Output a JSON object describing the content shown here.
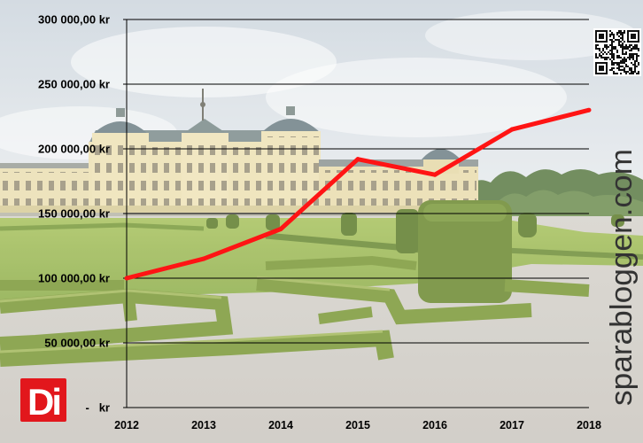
{
  "logo": {
    "text": "Di"
  },
  "watermark": "sparabloggen.com",
  "icons": {
    "qr": "qr-code-icon"
  },
  "colors": {
    "line": "#ff1414",
    "grid": "#000000",
    "logo_background": "#e2171c"
  },
  "chart_data": {
    "type": "line",
    "title": "",
    "xlabel": "",
    "ylabel": "",
    "categories": [
      "2012",
      "2013",
      "2014",
      "2015",
      "2016",
      "2017",
      "2018"
    ],
    "series": [
      {
        "values": [
          100000,
          115000,
          138000,
          192000,
          180000,
          215000,
          230000
        ]
      }
    ],
    "y_tick_values": [
      300000,
      250000,
      200000,
      150000,
      100000,
      50000,
      0
    ],
    "y_tick_labels": [
      "300 000,00 kr",
      "250 000,00 kr",
      "200 000,00 kr",
      "150 000,00 kr",
      "100 000,00 kr",
      "50 000,00 kr",
      "-   kr"
    ],
    "ylim": [
      0,
      300000
    ],
    "grid": "horizontal",
    "legend": "none"
  }
}
